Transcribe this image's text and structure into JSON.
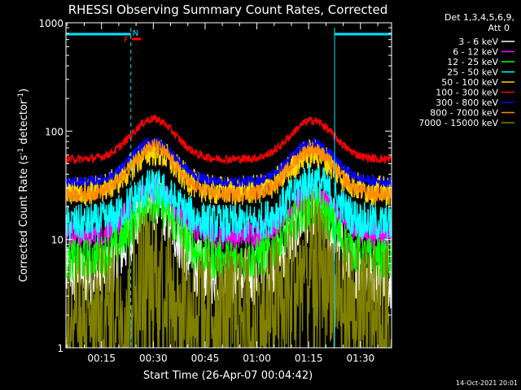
{
  "chart_data": {
    "type": "line",
    "title": "RHESSI Observing Summary Count Rates, Corrected",
    "xlabel": "Start Time (26-Apr-07 00:04:42)",
    "ylabel_main": "Corrected Count Rate (s",
    "ylabel_sup1": "-1",
    "ylabel_mid": " detector",
    "ylabel_sup2": "-1",
    "ylabel_end": ")",
    "y_scale": "log",
    "ylim": [
      1,
      1000
    ],
    "xlim_minutes": [
      4.7,
      99
    ],
    "x_ticks": [
      {
        "value": 15,
        "label": "00:15"
      },
      {
        "value": 30,
        "label": "00:30"
      },
      {
        "value": 45,
        "label": "00:45"
      },
      {
        "value": 60,
        "label": "01:00"
      },
      {
        "value": 75,
        "label": "01:15"
      },
      {
        "value": 90,
        "label": "01:30"
      }
    ],
    "y_ticks": [
      {
        "value": 1,
        "label": "1"
      },
      {
        "value": 10,
        "label": "10"
      },
      {
        "value": 100,
        "label": "100"
      },
      {
        "value": 1000,
        "label": "1000"
      }
    ],
    "legend_header": [
      "Det 1,3,4,5,6,9,",
      "Att 0"
    ],
    "series": [
      {
        "name": "3 - 6 keV",
        "color": "#ffffff",
        "base": 4.5,
        "peak1": 22,
        "peak2": 18,
        "noise": 0.28
      },
      {
        "name": "6 - 12 keV",
        "color": "#ff00ff",
        "base": 11,
        "peak1": 28,
        "peak2": 25,
        "noise": 0.14
      },
      {
        "name": "12 - 25 keV",
        "color": "#00ff00",
        "base": 6.5,
        "peak1": 22,
        "peak2": 20,
        "noise": 0.2
      },
      {
        "name": "25 - 50 keV",
        "color": "#00ffff",
        "base": 14,
        "peak1": 30,
        "peak2": 35,
        "noise": 0.18
      },
      {
        "name": "50 - 100 keV",
        "color": "#ffd700",
        "base": 28,
        "peak1": 65,
        "peak2": 62,
        "noise": 0.14
      },
      {
        "name": "100 - 300 keV",
        "color": "#ff0000",
        "base": 55,
        "peak1": 130,
        "peak2": 125,
        "noise": 0.04
      },
      {
        "name": "300 - 800 keV",
        "color": "#0000ff",
        "base": 34,
        "peak1": 80,
        "peak2": 78,
        "noise": 0.05
      },
      {
        "name": "800 - 7000 keV",
        "color": "#ff8c00",
        "base": 26,
        "peak1": 72,
        "peak2": 68,
        "noise": 0.07
      },
      {
        "name": "7000 - 15000 keV",
        "color": "#808000",
        "base": 2.2,
        "peak1": 6,
        "peak2": 6,
        "noise": 0.6
      }
    ],
    "night_intervals_minutes": [
      [
        4.7,
        23.5
      ],
      [
        82.5,
        99
      ]
    ],
    "saa_flag_label": "N",
    "flare_flag_label": "F",
    "flare_flag_minutes": [
      23.8,
      26.5
    ]
  },
  "timestamp": "14-Oct-2021 20:01"
}
